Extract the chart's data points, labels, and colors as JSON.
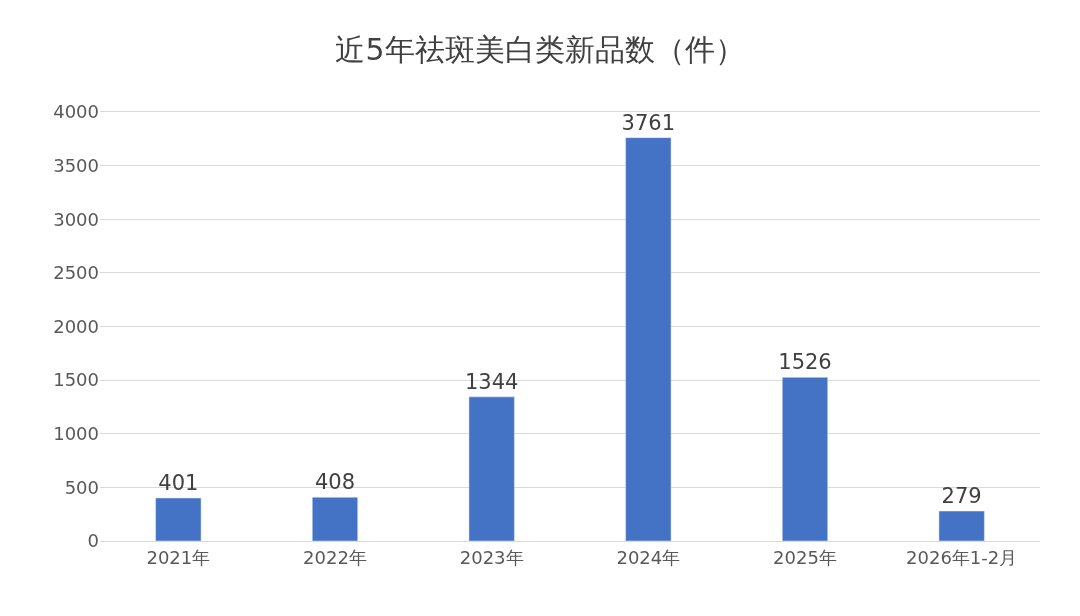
{
  "chart_data": {
    "type": "bar",
    "title": "近5年祛斑美白类新品数（件）",
    "categories": [
      "2021年",
      "2022年",
      "2023年",
      "2024年",
      "2025年",
      "2026年1-2月"
    ],
    "values": [
      401,
      408,
      1344,
      3761,
      1526,
      279
    ],
    "color": "#4472c4",
    "ylim": [
      0,
      4000
    ],
    "yticks": [
      0,
      500,
      1000,
      1500,
      2000,
      2500,
      3000,
      3500,
      4000
    ],
    "grid": "y",
    "data_labels": true
  }
}
